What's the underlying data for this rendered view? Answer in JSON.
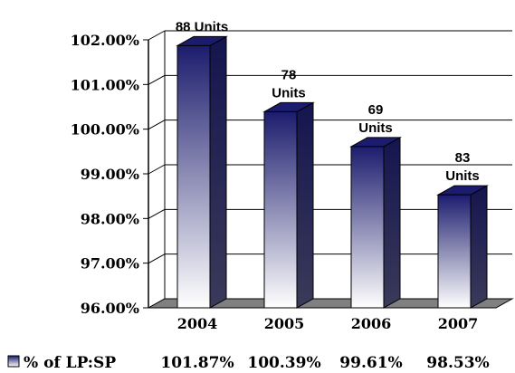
{
  "chart_data": {
    "type": "bar",
    "categories": [
      "2004",
      "2005",
      "2006",
      "2007"
    ],
    "series": [
      {
        "name": "% of LP:SP",
        "values": [
          101.87,
          100.39,
          99.61,
          98.53
        ],
        "value_labels": [
          "101.87%",
          "100.39%",
          "99.61%",
          "98.53%"
        ]
      }
    ],
    "data_labels": [
      [
        "88 Units"
      ],
      [
        "78",
        "Units"
      ],
      [
        "69",
        "Units"
      ],
      [
        "83",
        "Units"
      ]
    ],
    "y_tick_labels": [
      "96.00%",
      "97.00%",
      "98.00%",
      "99.00%",
      "100.00%",
      "101.00%",
      "102.00%"
    ],
    "y_ticks": [
      96,
      97,
      98,
      99,
      100,
      101,
      102
    ],
    "ylim": [
      96,
      102
    ],
    "grid": true,
    "bar_style": "3d-gradient",
    "legend": "data table below the axis",
    "colors": {
      "bar_top": "#1c1c6e",
      "bar_bottom": "#ffffff",
      "bar_side": "#2a2a5a",
      "floor": "#808080"
    },
    "title": "",
    "xlabel": "",
    "ylabel": ""
  }
}
